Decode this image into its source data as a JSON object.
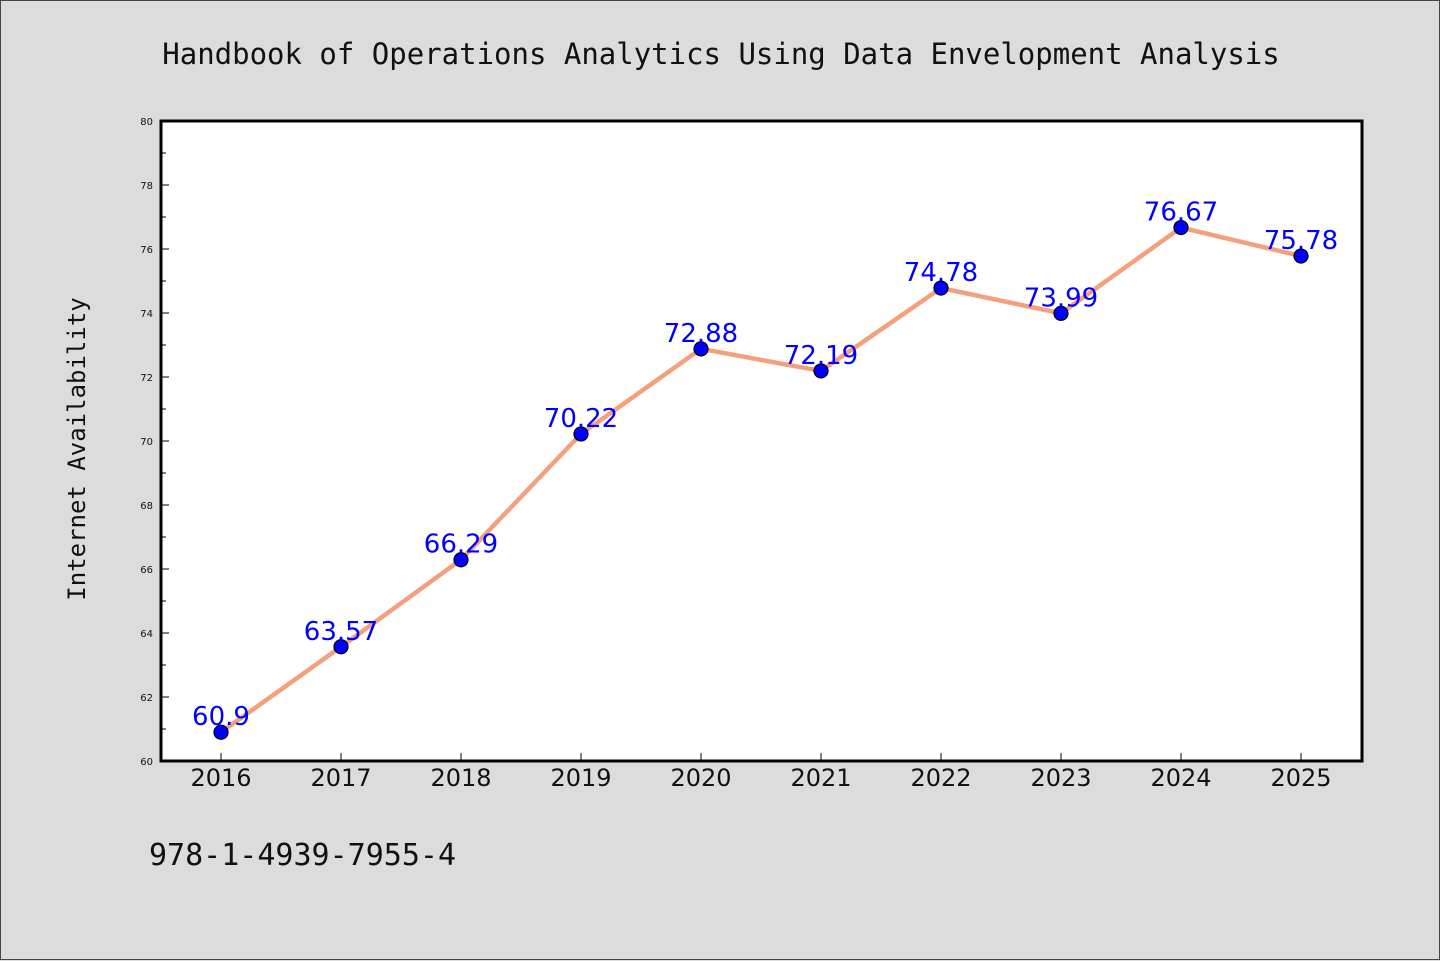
{
  "footer": {
    "isbn": "978-1-4939-7955-4"
  },
  "chart_data": {
    "type": "line",
    "title": "Handbook of Operations Analytics Using Data Envelopment Analysis",
    "xlabel": "",
    "ylabel": "Internet Availability",
    "categories": [
      "2016",
      "2017",
      "2018",
      "2019",
      "2020",
      "2021",
      "2022",
      "2023",
      "2024",
      "2025"
    ],
    "series": [
      {
        "values": [
          60.9,
          63.57,
          66.29,
          70.22,
          72.88,
          72.19,
          74.78,
          73.99,
          76.67,
          75.78
        ],
        "labels": [
          "60.9",
          "63.57",
          "66.29",
          "70.22",
          "72.88",
          "72.19",
          "74.78",
          "73.99",
          "76.67",
          "75.78"
        ],
        "line_color": "#f4a07e",
        "marker_color": "#0000ff"
      }
    ],
    "ylim": [
      60,
      80
    ],
    "yticks": [
      "60",
      "62",
      "64",
      "66",
      "68",
      "70",
      "72",
      "74",
      "76",
      "78",
      "80"
    ],
    "grid": false,
    "legend": "none",
    "colors": {
      "background": "#dcdcdc",
      "plot_background": "#ffffff",
      "line": "#f4a07e",
      "marker": "#0000ff",
      "data_label": "#0000ff"
    }
  }
}
